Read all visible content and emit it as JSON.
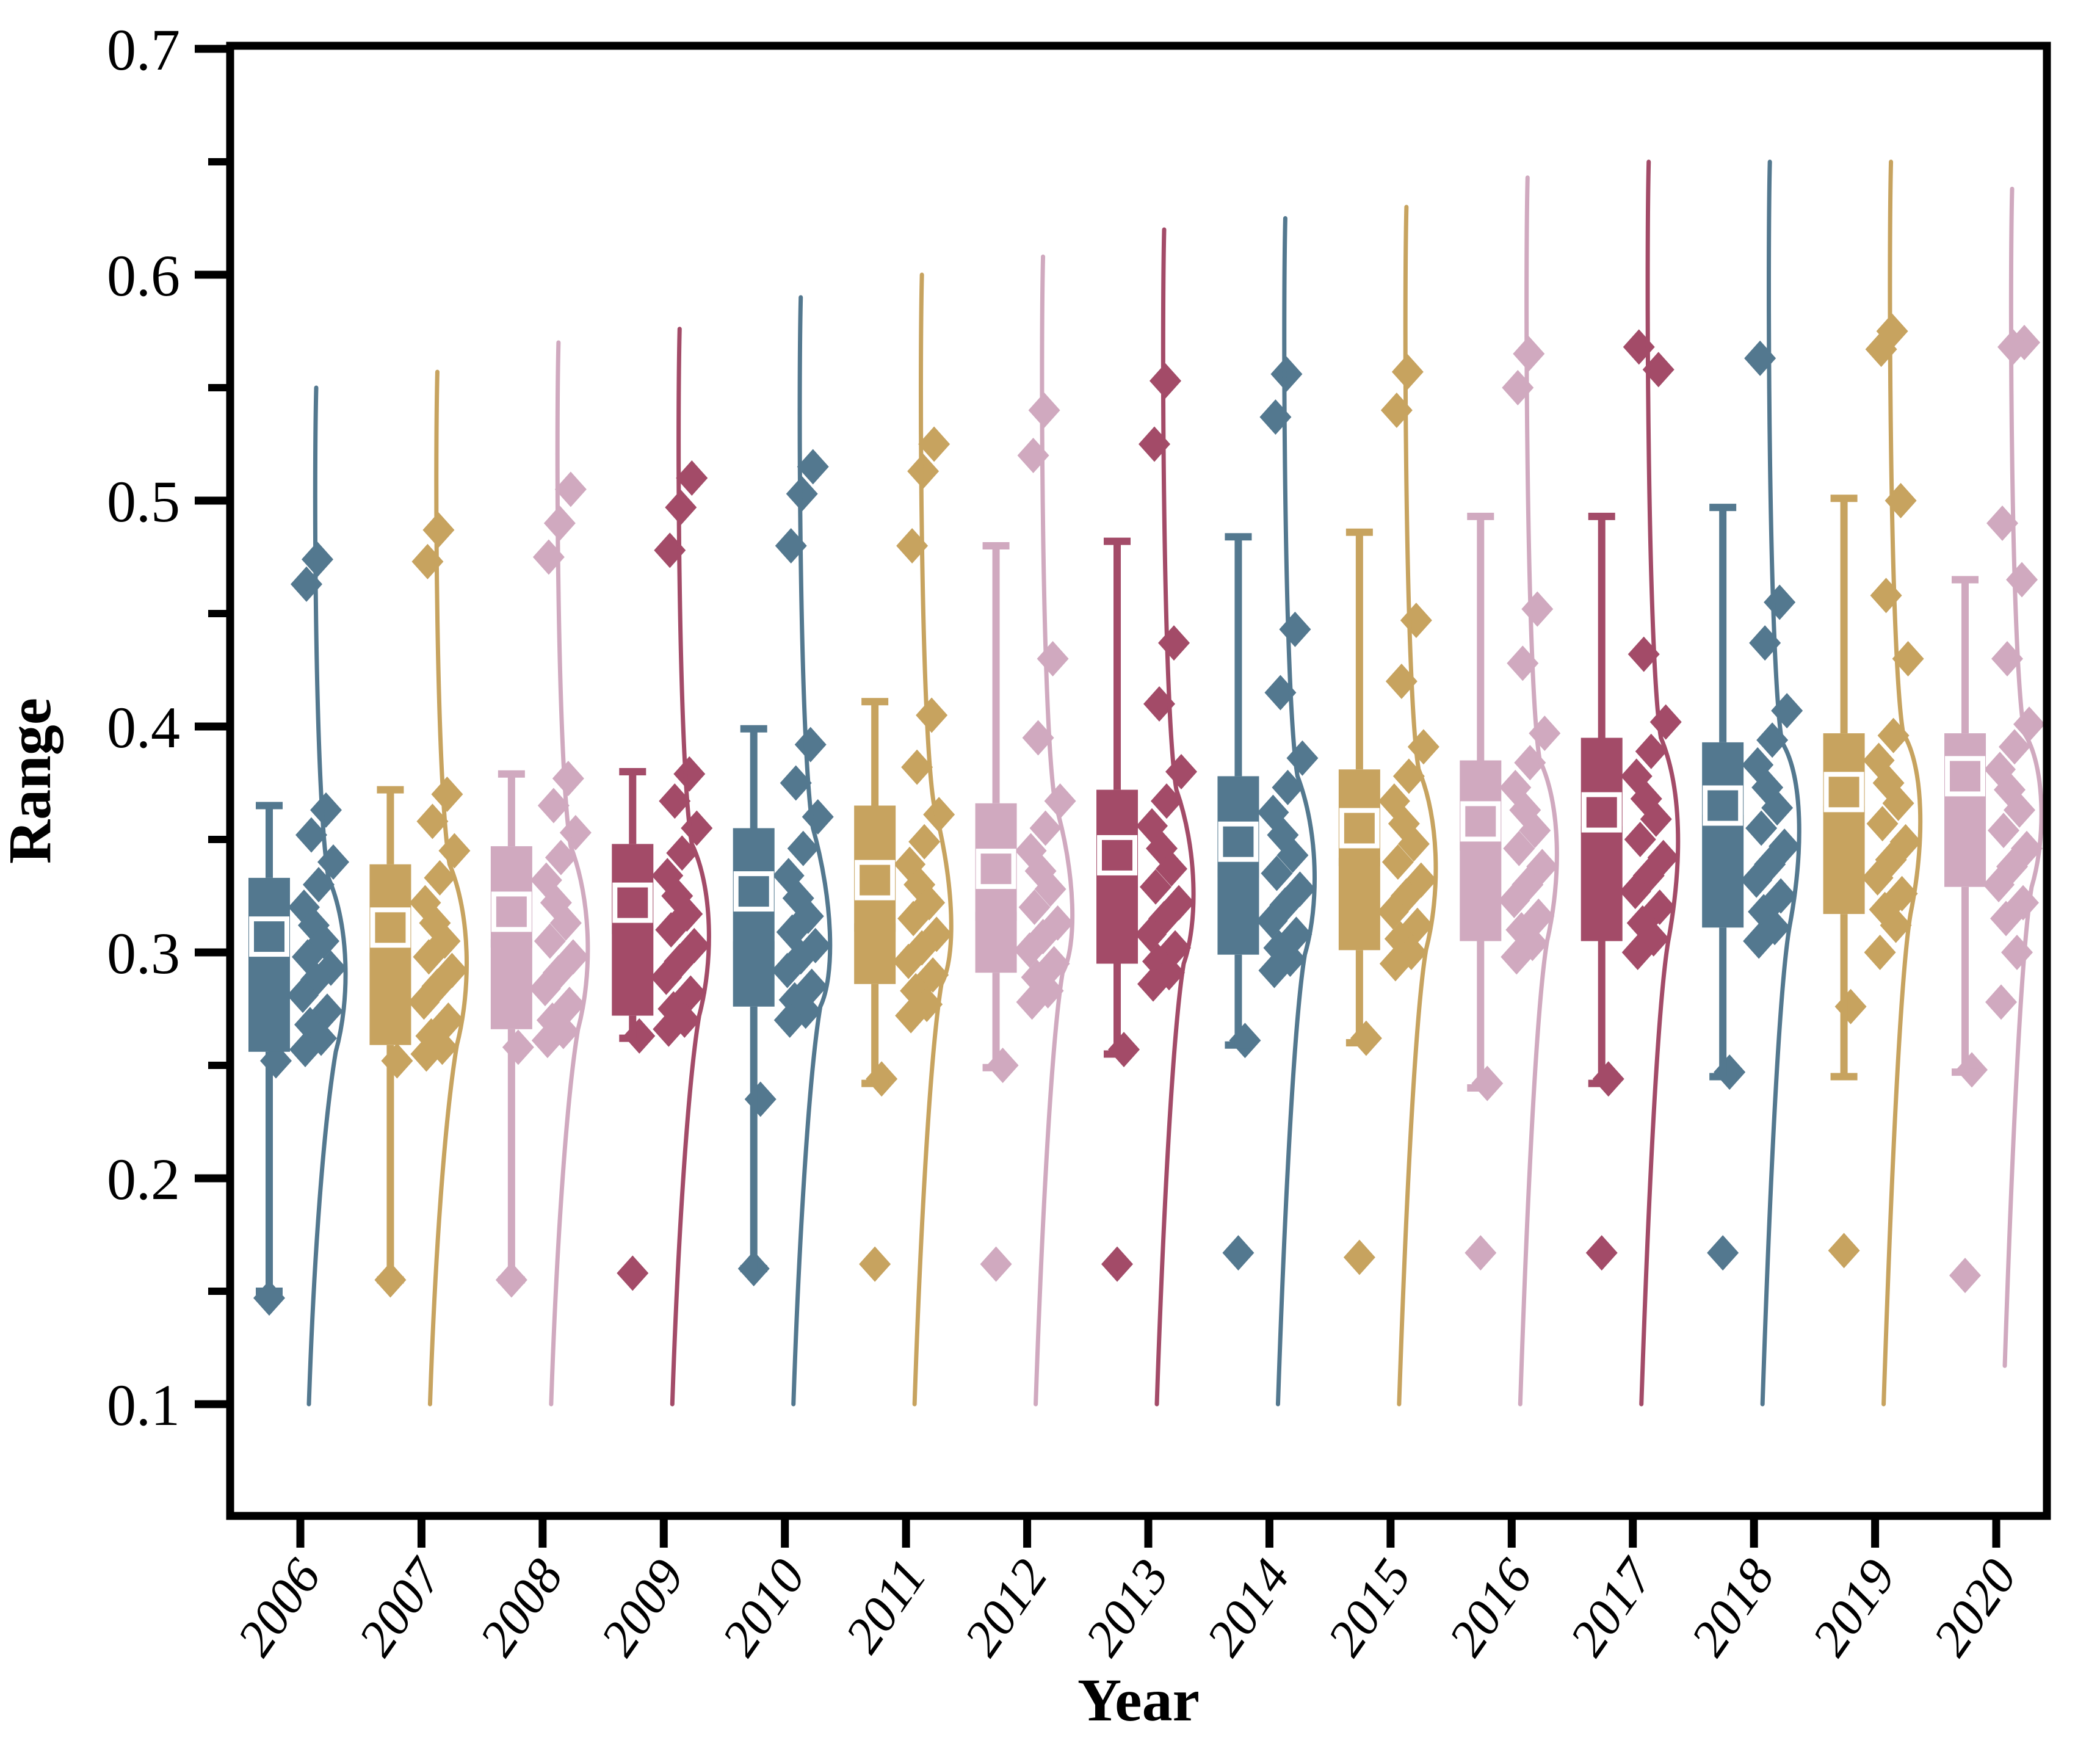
{
  "figure": {
    "kind": "raincloud box-scatter-violin plot",
    "background": "#ffffff"
  },
  "y_axis": {
    "label": "Range",
    "ticks": [
      0.1,
      0.2,
      0.3,
      0.4,
      0.5,
      0.6,
      0.7
    ],
    "minor_ticks": [
      0.15,
      0.25,
      0.35,
      0.45,
      0.55,
      0.65
    ],
    "range_top": 0.712,
    "range_bottom": 0.051
  },
  "x_axis": {
    "label": "Year",
    "categories": [
      "2006",
      "2007",
      "2008",
      "2009",
      "2010",
      "2011",
      "2012",
      "2013",
      "2014",
      "2015",
      "2016",
      "2017",
      "2018",
      "2019",
      "2020"
    ]
  },
  "colors": {
    "blue": "#53788f",
    "gold": "#c7a35f",
    "pink": "#d0a9bf",
    "maroon": "#a34b68",
    "median": "#b0b4b2",
    "mean_border": "#ffffff",
    "frame": "#000000"
  },
  "chart_data": {
    "type": "box",
    "title": "",
    "xlabel": "Year",
    "ylabel": "Range",
    "ylim": [
      0.05,
      0.712
    ],
    "grid": false,
    "legend": false,
    "series": [
      {
        "year": "2006",
        "color": "blue",
        "q1": 0.256,
        "median": 0.293,
        "q3": 0.333,
        "mean": 0.307,
        "whisker_low": 0.15,
        "whisker_high": 0.365,
        "violin_top": 0.55,
        "violin_bottom": 0.1,
        "points": [
          0.147,
          0.252,
          0.257,
          0.262,
          0.268,
          0.274,
          0.281,
          0.288,
          0.293,
          0.298,
          0.305,
          0.312,
          0.32,
          0.33,
          0.34,
          0.352,
          0.363,
          0.463,
          0.474
        ]
      },
      {
        "year": "2007",
        "color": "gold",
        "q1": 0.259,
        "median": 0.298,
        "q3": 0.339,
        "mean": 0.311,
        "whisker_low": 0.155,
        "whisker_high": 0.372,
        "violin_top": 0.557,
        "violin_bottom": 0.1,
        "points": [
          0.155,
          0.252,
          0.255,
          0.258,
          0.263,
          0.27,
          0.278,
          0.285,
          0.292,
          0.298,
          0.305,
          0.313,
          0.322,
          0.333,
          0.345,
          0.358,
          0.37,
          0.473,
          0.487
        ]
      },
      {
        "year": "2008",
        "color": "pink",
        "q1": 0.266,
        "median": 0.304,
        "q3": 0.347,
        "mean": 0.318,
        "whisker_low": 0.155,
        "whisker_high": 0.379,
        "violin_top": 0.57,
        "violin_bottom": 0.1,
        "points": [
          0.155,
          0.258,
          0.261,
          0.265,
          0.27,
          0.277,
          0.284,
          0.291,
          0.298,
          0.305,
          0.313,
          0.322,
          0.332,
          0.342,
          0.353,
          0.365,
          0.377,
          0.475,
          0.49,
          0.505
        ]
      },
      {
        "year": "2009",
        "color": "maroon",
        "q1": 0.272,
        "median": 0.31,
        "q3": 0.348,
        "mean": 0.322,
        "whisker_low": 0.262,
        "whisker_high": 0.38,
        "violin_top": 0.576,
        "violin_bottom": 0.1,
        "points": [
          0.158,
          0.263,
          0.266,
          0.27,
          0.275,
          0.282,
          0.289,
          0.296,
          0.303,
          0.31,
          0.317,
          0.325,
          0.334,
          0.344,
          0.355,
          0.367,
          0.379,
          0.478,
          0.497,
          0.51
        ]
      },
      {
        "year": "2010",
        "color": "blue",
        "q1": 0.276,
        "median": 0.303,
        "q3": 0.355,
        "mean": 0.327,
        "whisker_low": 0.16,
        "whisker_high": 0.399,
        "violin_top": 0.59,
        "violin_bottom": 0.1,
        "points": [
          0.16,
          0.235,
          0.27,
          0.274,
          0.279,
          0.285,
          0.292,
          0.298,
          0.303,
          0.309,
          0.316,
          0.324,
          0.334,
          0.346,
          0.36,
          0.375,
          0.392,
          0.48,
          0.503,
          0.515
        ]
      },
      {
        "year": "2011",
        "color": "gold",
        "q1": 0.286,
        "median": 0.311,
        "q3": 0.365,
        "mean": 0.332,
        "whisker_low": 0.242,
        "whisker_high": 0.411,
        "violin_top": 0.6,
        "violin_bottom": 0.1,
        "points": [
          0.162,
          0.244,
          0.272,
          0.277,
          0.283,
          0.29,
          0.296,
          0.302,
          0.308,
          0.315,
          0.322,
          0.33,
          0.339,
          0.349,
          0.361,
          0.382,
          0.405,
          0.48,
          0.513,
          0.525
        ]
      },
      {
        "year": "2012",
        "color": "pink",
        "q1": 0.291,
        "median": 0.316,
        "q3": 0.366,
        "mean": 0.337,
        "whisker_low": 0.249,
        "whisker_high": 0.48,
        "violin_top": 0.608,
        "violin_bottom": 0.1,
        "points": [
          0.162,
          0.25,
          0.278,
          0.283,
          0.289,
          0.295,
          0.301,
          0.307,
          0.313,
          0.32,
          0.328,
          0.336,
          0.345,
          0.355,
          0.367,
          0.395,
          0.43,
          0.52,
          0.54
        ]
      },
      {
        "year": "2013",
        "color": "maroon",
        "q1": 0.295,
        "median": 0.327,
        "q3": 0.372,
        "mean": 0.343,
        "whisker_low": 0.255,
        "whisker_high": 0.482,
        "violin_top": 0.62,
        "violin_bottom": 0.1,
        "points": [
          0.162,
          0.257,
          0.286,
          0.291,
          0.296,
          0.302,
          0.308,
          0.315,
          0.322,
          0.329,
          0.337,
          0.346,
          0.356,
          0.367,
          0.38,
          0.41,
          0.437,
          0.525,
          0.553
        ]
      },
      {
        "year": "2014",
        "color": "blue",
        "q1": 0.299,
        "median": 0.335,
        "q3": 0.378,
        "mean": 0.349,
        "whisker_low": 0.259,
        "whisker_high": 0.484,
        "violin_top": 0.625,
        "violin_bottom": 0.1,
        "points": [
          0.167,
          0.261,
          0.292,
          0.297,
          0.302,
          0.308,
          0.314,
          0.321,
          0.328,
          0.335,
          0.343,
          0.352,
          0.362,
          0.373,
          0.386,
          0.415,
          0.443,
          0.537,
          0.556
        ]
      },
      {
        "year": "2015",
        "color": "gold",
        "q1": 0.301,
        "median": 0.34,
        "q3": 0.381,
        "mean": 0.355,
        "whisker_low": 0.26,
        "whisker_high": 0.486,
        "violin_top": 0.63,
        "violin_bottom": 0.1,
        "points": [
          0.165,
          0.262,
          0.295,
          0.3,
          0.306,
          0.312,
          0.318,
          0.325,
          0.332,
          0.34,
          0.348,
          0.357,
          0.367,
          0.378,
          0.391,
          0.42,
          0.447,
          0.54,
          0.557
        ]
      },
      {
        "year": "2016",
        "color": "pink",
        "q1": 0.305,
        "median": 0.347,
        "q3": 0.385,
        "mean": 0.358,
        "whisker_low": 0.24,
        "whisker_high": 0.493,
        "violin_top": 0.643,
        "violin_bottom": 0.1,
        "points": [
          0.167,
          0.242,
          0.298,
          0.304,
          0.31,
          0.316,
          0.323,
          0.33,
          0.338,
          0.346,
          0.354,
          0.363,
          0.373,
          0.384,
          0.397,
          0.428,
          0.452,
          0.55,
          0.565
        ]
      },
      {
        "year": "2017",
        "color": "maroon",
        "q1": 0.305,
        "median": 0.354,
        "q3": 0.395,
        "mean": 0.362,
        "whisker_low": 0.242,
        "whisker_high": 0.493,
        "violin_top": 0.65,
        "violin_bottom": 0.1,
        "points": [
          0.167,
          0.244,
          0.3,
          0.306,
          0.313,
          0.32,
          0.327,
          0.334,
          0.342,
          0.35,
          0.359,
          0.368,
          0.378,
          0.389,
          0.402,
          0.432,
          0.558,
          0.568
        ]
      },
      {
        "year": "2018",
        "color": "blue",
        "q1": 0.311,
        "median": 0.359,
        "q3": 0.393,
        "mean": 0.365,
        "whisker_low": 0.245,
        "whisker_high": 0.497,
        "violin_top": 0.65,
        "violin_bottom": 0.1,
        "points": [
          0.167,
          0.247,
          0.305,
          0.311,
          0.318,
          0.325,
          0.332,
          0.339,
          0.347,
          0.355,
          0.364,
          0.373,
          0.383,
          0.394,
          0.407,
          0.437,
          0.455,
          0.563
        ]
      },
      {
        "year": "2019",
        "color": "gold",
        "q1": 0.317,
        "median": 0.363,
        "q3": 0.397,
        "mean": 0.371,
        "whisker_low": 0.245,
        "whisker_high": 0.501,
        "violin_top": 0.65,
        "violin_bottom": 0.1,
        "points": [
          0.168,
          0.276,
          0.3,
          0.312,
          0.319,
          0.326,
          0.333,
          0.341,
          0.349,
          0.357,
          0.366,
          0.375,
          0.385,
          0.396,
          0.43,
          0.458,
          0.5,
          0.567,
          0.575
        ]
      },
      {
        "year": "2020",
        "color": "pink",
        "q1": 0.329,
        "median": 0.364,
        "q3": 0.397,
        "mean": 0.378,
        "whisker_low": 0.247,
        "whisker_high": 0.465,
        "violin_top": 0.638,
        "violin_bottom": 0.117,
        "points": [
          0.157,
          0.248,
          0.278,
          0.3,
          0.315,
          0.322,
          0.33,
          0.338,
          0.346,
          0.354,
          0.363,
          0.372,
          0.381,
          0.391,
          0.401,
          0.43,
          0.465,
          0.49,
          0.568,
          0.57
        ]
      }
    ]
  }
}
